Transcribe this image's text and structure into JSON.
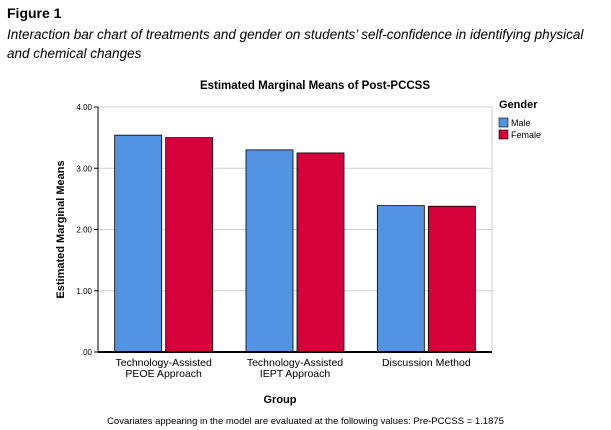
{
  "figure": {
    "label": "Figure 1",
    "caption": "Interaction bar chart of treatments and gender on students’ self-confidence in identifying physical and chemical changes"
  },
  "chart_data": {
    "type": "bar",
    "title": "Estimated Marginal Means of Post-PCCSS",
    "xlabel": "Group",
    "ylabel": "Estimated Marginal Means",
    "ylim": [
      0,
      4
    ],
    "yticks": [
      ".00",
      "1.00",
      "2.00",
      "3.00",
      "4.00"
    ],
    "categories": [
      [
        "Technology-Assisted",
        "PEOE Approach"
      ],
      [
        "Technology-Assisted",
        "IEPT Approach"
      ],
      [
        "Discussion Method"
      ]
    ],
    "legend": {
      "title": "Gender",
      "position": "right"
    },
    "grid": true,
    "series": [
      {
        "name": "Male",
        "color": "#5393e4",
        "values": [
          3.54,
          3.3,
          2.39
        ]
      },
      {
        "name": "Female",
        "color": "#d6003a",
        "values": [
          3.5,
          3.25,
          2.38
        ]
      }
    ],
    "footnote": "Covariates appearing in the model are evaluated at the following values: Pre-PCCSS = 1.1875"
  }
}
